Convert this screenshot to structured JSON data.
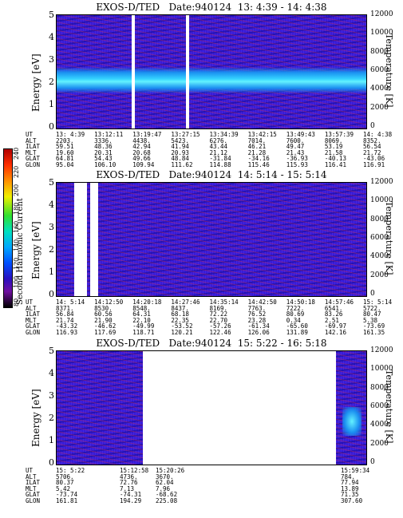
{
  "panels": [
    {
      "title": "EXOS-D/TED   Date:940124  13: 4:39 - 14: 4:38",
      "ylabel": "Energy [eV]",
      "y2label": "Temperature [K]",
      "yticks": [
        "5",
        "4",
        "3",
        "2",
        "1",
        "0"
      ],
      "y2ticks": [
        "12000",
        "10000",
        "8000",
        "6000",
        "4000",
        "2000",
        "0"
      ],
      "eph_labels": [
        "UT",
        "ALT",
        "ILAT",
        "MLT",
        "GLAT",
        "GLON"
      ],
      "eph_cols": [
        [
          "13: 4:39",
          "2203.",
          "59.51",
          "19.60",
          "64.81",
          "95.04"
        ],
        [
          "13:12:11",
          "3336.",
          "48.36",
          "20.31",
          "54.43",
          "106.10"
        ],
        [
          "13:19:47",
          "4438.",
          "42.94",
          "20.68",
          "49.66",
          "109.94"
        ],
        [
          "13:27:15",
          "5423.",
          "41.94",
          "20.93",
          "48.84",
          "111.62"
        ],
        [
          "13:34:39",
          "6276.",
          "43.44",
          "21.12",
          "-31.84",
          "114.88"
        ],
        [
          "13:42:15",
          "7014.",
          "46.21",
          "21.28",
          "-34.16",
          "115.46"
        ],
        [
          "13:49:43",
          "7600.",
          "49.47",
          "21.43",
          "-36.93",
          "115.93"
        ],
        [
          "13:57:39",
          "8069.",
          "53.19",
          "21.58",
          "-40.13",
          "116.41"
        ],
        [
          "14: 4:38",
          "8352.",
          "56.54",
          "21.72",
          "-43.06",
          "116.91"
        ]
      ]
    },
    {
      "title": "EXOS-D/TED   Date:940124  14: 5:14 - 15: 5:14",
      "ylabel": "Energy [eV]",
      "y2label": "Temperature [K]",
      "yticks": [
        "5",
        "4",
        "3",
        "2",
        "1",
        "0"
      ],
      "y2ticks": [
        "12000",
        "10000",
        "8000",
        "6000",
        "4000",
        "2000",
        "0"
      ],
      "eph_labels": [
        "UT",
        "ALT",
        "ILAT",
        "MLT",
        "GLAT",
        "GLON"
      ],
      "eph_cols": [
        [
          "14: 5:14",
          "8371.",
          "56.84",
          "21.74",
          "-43.32",
          "116.93"
        ],
        [
          "14:12:50",
          "8530.",
          "60.56",
          "21.90",
          "-46.62",
          "117.69"
        ],
        [
          "14:20:18",
          "8548.",
          "64.31",
          "22.10",
          "-49.99",
          "118.71"
        ],
        [
          "14:27:46",
          "8437.",
          "68.18",
          "22.35",
          "-53.52",
          "120.21"
        ],
        [
          "14:35:14",
          "8169.",
          "72.22",
          "22.70",
          "-57.26",
          "122.46"
        ],
        [
          "14:42:50",
          "7763.",
          "76.52",
          "23.28",
          "-61.34",
          "126.06"
        ],
        [
          "14:50:18",
          "7222.",
          "80.69",
          "0.34",
          "-65.60",
          "131.89"
        ],
        [
          "14:57:46",
          "6541.",
          "83.26",
          "2.51",
          "-69.97",
          "142.16"
        ],
        [
          "15: 5:14",
          "5722.",
          "80.47",
          "5.38",
          "-73.69",
          "161.35"
        ]
      ]
    },
    {
      "title": "EXOS-D/TED   Date:940124  15: 5:22 - 16: 5:18",
      "ylabel": "Energy [eV]",
      "y2label": "Temperature [K]",
      "yticks": [
        "5",
        "4",
        "3",
        "2",
        "1",
        "0"
      ],
      "y2ticks": [
        "12000",
        "10000",
        "8000",
        "6000",
        "4000",
        "2000",
        "0"
      ],
      "eph_labels": [
        "UT",
        "ALT",
        "ILAT",
        "MLT",
        "GLAT",
        "GLON"
      ],
      "eph_cols": [
        [
          "15: 5:22",
          "5706.",
          "80.37",
          "5.42",
          "-73.74",
          "161.81"
        ],
        [
          "15:12:58",
          "4736.",
          "72.76",
          "7.13",
          "-74.31",
          "194.29"
        ],
        [
          "15:20:26",
          "3670.",
          "62.04",
          "7.96",
          "-68.62",
          "225.08"
        ],
        [
          "15:59:34",
          "784.",
          "77.94",
          "13.89",
          "71.35",
          "307.60"
        ]
      ]
    }
  ],
  "colorbar": {
    "label": "Second Harmonic Current",
    "ticks": [
      "240",
      "220",
      "200",
      "180",
      "160",
      "140",
      "120",
      "100",
      "80"
    ]
  },
  "chart_data": [
    {
      "type": "heatmap",
      "title": "EXOS-D/TED   Date:940124  13: 4:39 - 14: 4:38",
      "xlabel": "UT",
      "ylabel": "Energy [eV]",
      "y2label": "Temperature [K]",
      "ylim": [
        0,
        5
      ],
      "y2lim": [
        0,
        12000
      ],
      "x_tick_labels": [
        "13: 4:39",
        "13:12:11",
        "13:19:47",
        "13:27:15",
        "13:34:39",
        "13:42:15",
        "13:49:43",
        "13:57:39",
        "14: 4:38"
      ],
      "description_band_energy_eV": [
        1.7,
        2.8
      ]
    },
    {
      "type": "heatmap",
      "title": "EXOS-D/TED   Date:940124  14: 5:14 - 15: 5:14",
      "xlabel": "UT",
      "ylabel": "Energy [eV]",
      "y2label": "Temperature [K]",
      "ylim": [
        0,
        5
      ],
      "y2lim": [
        0,
        12000
      ],
      "x_tick_labels": [
        "14: 5:14",
        "14:12:50",
        "14:20:18",
        "14:27:46",
        "14:35:14",
        "14:42:50",
        "14:50:18",
        "14:57:46",
        "15: 5:14"
      ]
    },
    {
      "type": "heatmap",
      "title": "EXOS-D/TED   Date:940124  15: 5:22 - 16: 5:18",
      "xlabel": "UT",
      "ylabel": "Energy [eV]",
      "y2label": "Temperature [K]",
      "ylim": [
        0,
        5
      ],
      "y2lim": [
        0,
        12000
      ],
      "x_tick_labels": [
        "15: 5:22",
        "15:12:58",
        "15:20:26",
        "15:59:34"
      ]
    }
  ]
}
